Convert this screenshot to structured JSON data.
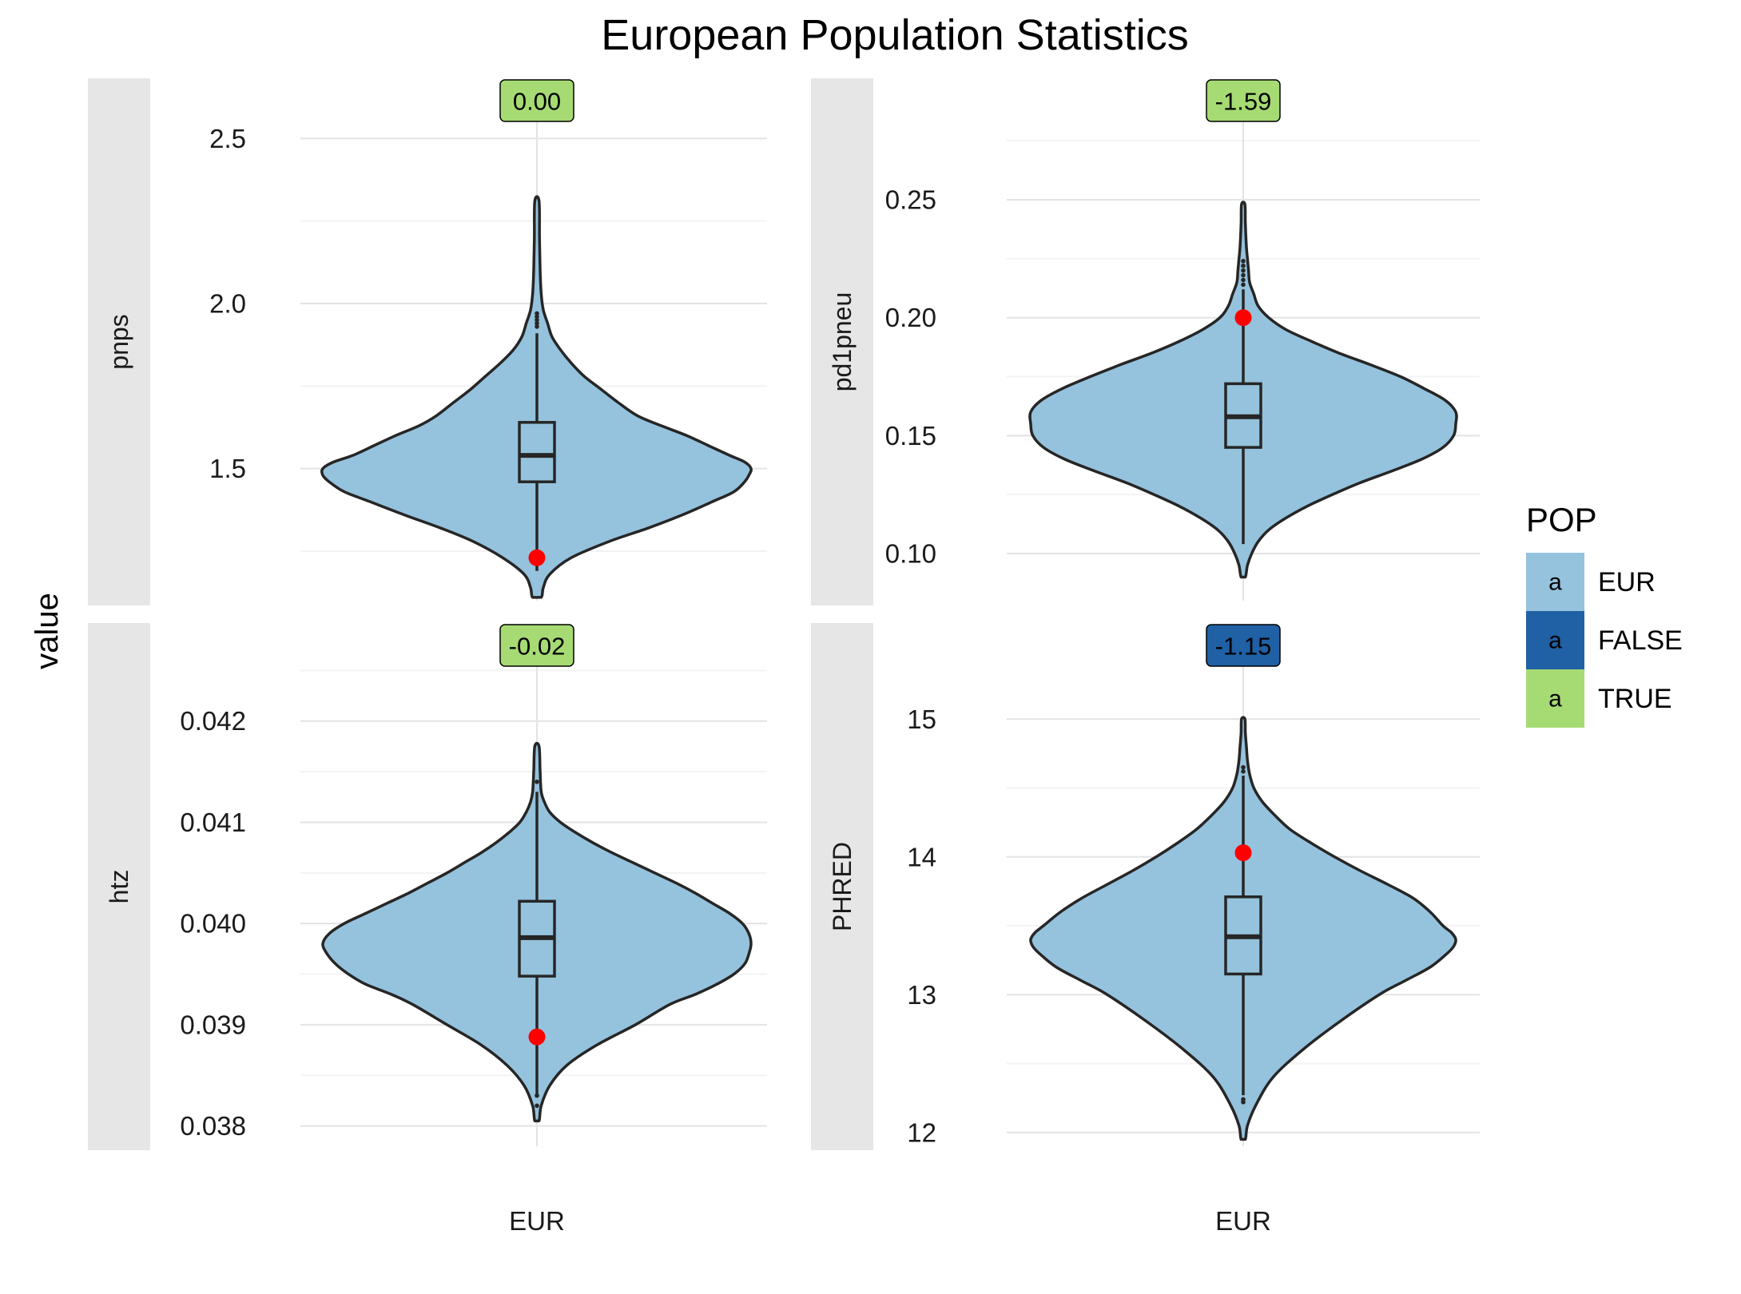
{
  "title": "European Population Statistics",
  "ylabel": "value",
  "legend": {
    "title": "POP",
    "key_glyph": "a",
    "placement": "right",
    "items": [
      {
        "label": "EUR",
        "color": "#95c2dc"
      },
      {
        "label": "FALSE",
        "color": "#2060a4"
      },
      {
        "label": "TRUE",
        "color": "#a6db74"
      }
    ]
  },
  "colors": {
    "violin_fill": "#95c2dc",
    "outline": "#262626",
    "observed_point": "#ff0000",
    "strip": "#e6e6e6",
    "grid_major": "#e3e3e3",
    "grid_minor": "#f3f3f3"
  },
  "chart_data": [
    {
      "type": "violin",
      "facet": "pnps",
      "category": "EUR",
      "ylim": [
        1.1,
        2.6
      ],
      "yticks": [
        1.5,
        2.0,
        2.5
      ],
      "ytick_labels": [
        "1.5",
        "2.0",
        "2.5"
      ],
      "label": {
        "text": "0.00",
        "group": "TRUE"
      },
      "observed": 1.23,
      "box": {
        "lower": 1.46,
        "median": 1.54,
        "upper": 1.64,
        "whisker_low": 1.19,
        "whisker_high": 1.91
      },
      "outliers": [
        1.93,
        1.94,
        1.95,
        1.96,
        1.97
      ],
      "density": {
        "y": [
          1.11,
          1.14,
          1.18,
          1.23,
          1.28,
          1.32,
          1.36,
          1.4,
          1.43,
          1.46,
          1.48,
          1.5,
          1.52,
          1.54,
          1.57,
          1.6,
          1.63,
          1.66,
          1.7,
          1.74,
          1.78,
          1.82,
          1.86,
          1.9,
          1.94,
          1.98,
          2.03,
          2.1,
          2.2,
          2.31
        ],
        "left": [
          0.02,
          0.03,
          0.06,
          0.16,
          0.3,
          0.45,
          0.62,
          0.78,
          0.9,
          0.97,
          1.0,
          1.0,
          0.95,
          0.86,
          0.76,
          0.66,
          0.55,
          0.47,
          0.39,
          0.31,
          0.24,
          0.17,
          0.11,
          0.07,
          0.05,
          0.03,
          0.02,
          0.015,
          0.012,
          0.01
        ],
        "right": [
          0.02,
          0.03,
          0.06,
          0.16,
          0.34,
          0.52,
          0.68,
          0.82,
          0.92,
          0.97,
          0.99,
          1.0,
          0.97,
          0.9,
          0.8,
          0.7,
          0.58,
          0.47,
          0.38,
          0.3,
          0.22,
          0.16,
          0.11,
          0.07,
          0.05,
          0.03,
          0.02,
          0.015,
          0.012,
          0.01
        ]
      }
    },
    {
      "type": "violin",
      "facet": "pd1pneu",
      "category": "EUR",
      "ylim": [
        0.08,
        0.29
      ],
      "yticks": [
        0.1,
        0.15,
        0.2,
        0.25
      ],
      "ytick_labels": [
        "0.10",
        "0.15",
        "0.20",
        "0.25"
      ],
      "label": {
        "text": "-1.59",
        "group": "TRUE"
      },
      "observed": 0.2,
      "box": {
        "lower": 0.145,
        "median": 0.158,
        "upper": 0.172,
        "whisker_low": 0.104,
        "whisker_high": 0.212
      },
      "outliers": [
        0.214,
        0.216,
        0.218,
        0.22,
        0.222,
        0.224
      ],
      "density": {
        "y": [
          0.09,
          0.095,
          0.1,
          0.105,
          0.11,
          0.115,
          0.12,
          0.125,
          0.13,
          0.135,
          0.14,
          0.145,
          0.15,
          0.155,
          0.16,
          0.165,
          0.17,
          0.175,
          0.18,
          0.185,
          0.19,
          0.195,
          0.2,
          0.205,
          0.21,
          0.215,
          0.22,
          0.225,
          0.23,
          0.24,
          0.248
        ],
        "left": [
          0.01,
          0.02,
          0.04,
          0.07,
          0.12,
          0.2,
          0.3,
          0.42,
          0.55,
          0.7,
          0.84,
          0.94,
          0.99,
          1.0,
          1.0,
          0.95,
          0.85,
          0.72,
          0.58,
          0.43,
          0.3,
          0.19,
          0.11,
          0.07,
          0.05,
          0.03,
          0.025,
          0.02,
          0.015,
          0.01,
          0.008
        ],
        "right": [
          0.01,
          0.02,
          0.04,
          0.07,
          0.12,
          0.2,
          0.3,
          0.42,
          0.55,
          0.7,
          0.84,
          0.94,
          0.99,
          1.0,
          1.0,
          0.95,
          0.85,
          0.74,
          0.6,
          0.45,
          0.32,
          0.2,
          0.12,
          0.07,
          0.05,
          0.03,
          0.025,
          0.02,
          0.015,
          0.01,
          0.008
        ]
      }
    },
    {
      "type": "violin",
      "facet": "htz",
      "category": "EUR",
      "ylim": [
        0.0378,
        0.0427
      ],
      "yticks": [
        0.038,
        0.039,
        0.04,
        0.041,
        0.042
      ],
      "ytick_labels": [
        "0.038",
        "0.039",
        "0.040",
        "0.041",
        "0.042"
      ],
      "label": {
        "text": "-0.02",
        "group": "TRUE"
      },
      "observed": 0.03888,
      "box": {
        "lower": 0.03948,
        "median": 0.03986,
        "upper": 0.04022,
        "whisker_low": 0.0383,
        "whisker_high": 0.0413
      },
      "outliers": [
        0.0382,
        0.0383,
        0.0414
      ],
      "density": {
        "y": [
          0.03805,
          0.0382,
          0.0384,
          0.0386,
          0.0388,
          0.039,
          0.0392,
          0.0393,
          0.0394,
          0.0395,
          0.0396,
          0.0397,
          0.0398,
          0.0399,
          0.04,
          0.0401,
          0.0402,
          0.0403,
          0.0404,
          0.0405,
          0.0406,
          0.0407,
          0.0408,
          0.0409,
          0.041,
          0.0411,
          0.0412,
          0.0413,
          0.0415,
          0.04175
        ],
        "left": [
          0.01,
          0.02,
          0.06,
          0.14,
          0.26,
          0.42,
          0.58,
          0.68,
          0.8,
          0.88,
          0.94,
          0.98,
          1.0,
          0.97,
          0.9,
          0.8,
          0.7,
          0.6,
          0.51,
          0.42,
          0.34,
          0.26,
          0.19,
          0.13,
          0.08,
          0.05,
          0.03,
          0.02,
          0.015,
          0.01
        ],
        "right": [
          0.01,
          0.02,
          0.06,
          0.14,
          0.28,
          0.46,
          0.62,
          0.74,
          0.84,
          0.92,
          0.97,
          0.99,
          1.0,
          0.99,
          0.96,
          0.9,
          0.82,
          0.74,
          0.65,
          0.55,
          0.45,
          0.35,
          0.26,
          0.18,
          0.11,
          0.06,
          0.035,
          0.02,
          0.015,
          0.01
        ]
      }
    },
    {
      "type": "violin",
      "facet": "PHRED",
      "category": "EUR",
      "ylim": [
        11.9,
        15.5
      ],
      "yticks": [
        12,
        13,
        14,
        15
      ],
      "ytick_labels": [
        "12",
        "13",
        "14",
        "15"
      ],
      "label": {
        "text": "-1.15",
        "group": "FALSE"
      },
      "observed": 14.03,
      "box": {
        "lower": 13.15,
        "median": 13.42,
        "upper": 13.71,
        "whisker_low": 12.27,
        "whisker_high": 14.59
      },
      "outliers": [
        12.22,
        12.24,
        14.62,
        14.65
      ],
      "density": {
        "y": [
          11.95,
          12.05,
          12.2,
          12.4,
          12.6,
          12.8,
          13.0,
          13.1,
          13.2,
          13.3,
          13.35,
          13.4,
          13.45,
          13.5,
          13.6,
          13.7,
          13.8,
          13.9,
          14.0,
          14.1,
          14.2,
          14.3,
          14.4,
          14.5,
          14.6,
          14.7,
          14.8,
          14.9,
          15.0
        ],
        "left": [
          0.01,
          0.02,
          0.06,
          0.14,
          0.28,
          0.45,
          0.64,
          0.76,
          0.88,
          0.96,
          0.99,
          1.0,
          0.98,
          0.94,
          0.86,
          0.76,
          0.64,
          0.52,
          0.41,
          0.31,
          0.22,
          0.15,
          0.09,
          0.05,
          0.03,
          0.02,
          0.015,
          0.01,
          0.008
        ],
        "right": [
          0.01,
          0.02,
          0.06,
          0.14,
          0.28,
          0.45,
          0.64,
          0.76,
          0.88,
          0.96,
          0.99,
          1.0,
          0.98,
          0.94,
          0.88,
          0.8,
          0.68,
          0.55,
          0.43,
          0.32,
          0.22,
          0.15,
          0.09,
          0.05,
          0.03,
          0.02,
          0.015,
          0.01,
          0.008
        ]
      }
    }
  ]
}
